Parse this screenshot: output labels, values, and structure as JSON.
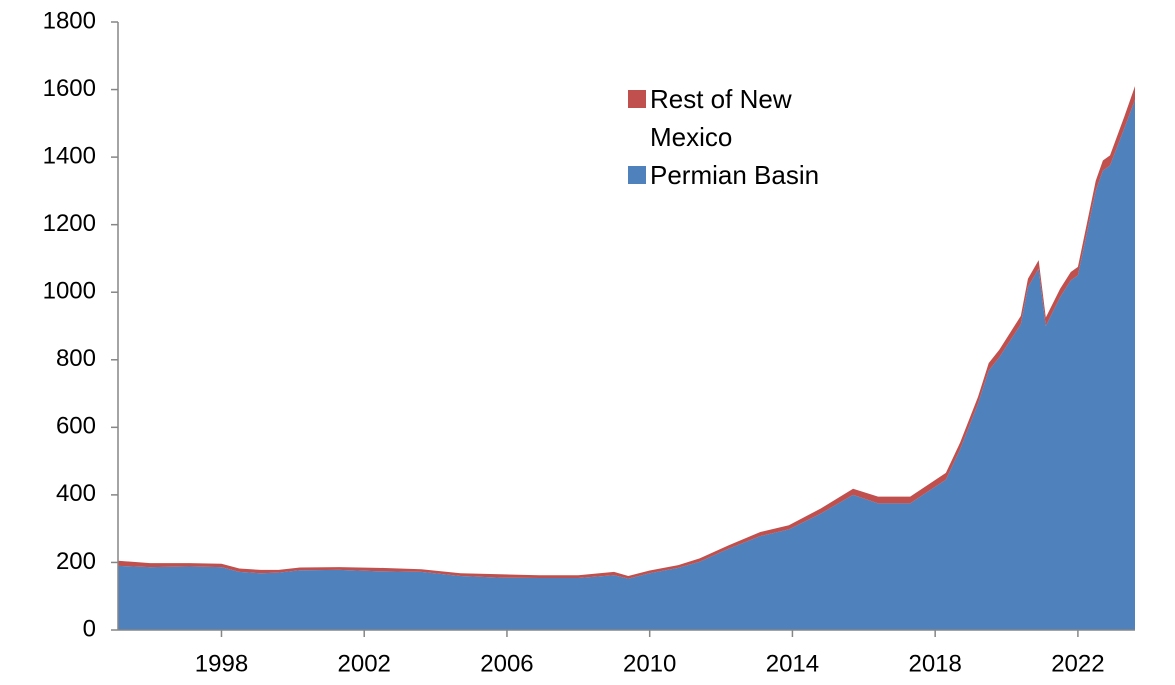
{
  "chart_data": {
    "type": "stacked_area",
    "x": [
      1995.1,
      1996.0,
      1997.1,
      1998.0,
      1998.5,
      1999.1,
      1999.6,
      2000.2,
      2001.3,
      2002.4,
      2003.6,
      2004.7,
      2005.8,
      2006.9,
      2008.0,
      2009.0,
      2009.4,
      2010.0,
      2010.8,
      2011.4,
      2012.2,
      2013.1,
      2013.9,
      2014.8,
      2015.7,
      2016.4,
      2017.3,
      2017.8,
      2018.3,
      2018.7,
      2019.2,
      2019.5,
      2019.8,
      2020.4,
      2020.6,
      2020.9,
      2021.1,
      2021.5,
      2021.8,
      2022.0,
      2022.5,
      2022.7,
      2022.9,
      2023.3,
      2023.6
    ],
    "series": [
      {
        "name": "Permian Basin",
        "color": "#4f81bd",
        "values": [
          190,
          186,
          188,
          186,
          172,
          168,
          170,
          177,
          178,
          174,
          172,
          160,
          155,
          154,
          154,
          162,
          152,
          168,
          184,
          202,
          240,
          278,
          298,
          345,
          400,
          375,
          375,
          410,
          445,
          535,
          670,
          768,
          808,
          905,
          1015,
          1070,
          900,
          985,
          1035,
          1050,
          1300,
          1360,
          1375,
          1485,
          1570
        ]
      },
      {
        "name": "Rest of New Mexico",
        "color": "#c0504d",
        "values": [
          15,
          12,
          10,
          10,
          10,
          10,
          8,
          8,
          8,
          10,
          8,
          8,
          10,
          8,
          8,
          10,
          8,
          8,
          8,
          10,
          10,
          12,
          12,
          15,
          18,
          20,
          20,
          20,
          20,
          20,
          20,
          22,
          22,
          25,
          25,
          25,
          25,
          25,
          25,
          25,
          30,
          30,
          30,
          35,
          40
        ]
      }
    ],
    "xlim": [
      1995.1,
      2023.6
    ],
    "xticks": [
      1998,
      2002,
      2006,
      2010,
      2014,
      2018,
      2022
    ],
    "ylim": [
      0,
      1800
    ],
    "yticks": [
      0,
      200,
      400,
      600,
      800,
      1000,
      1200,
      1400,
      1600,
      1800
    ]
  }
}
